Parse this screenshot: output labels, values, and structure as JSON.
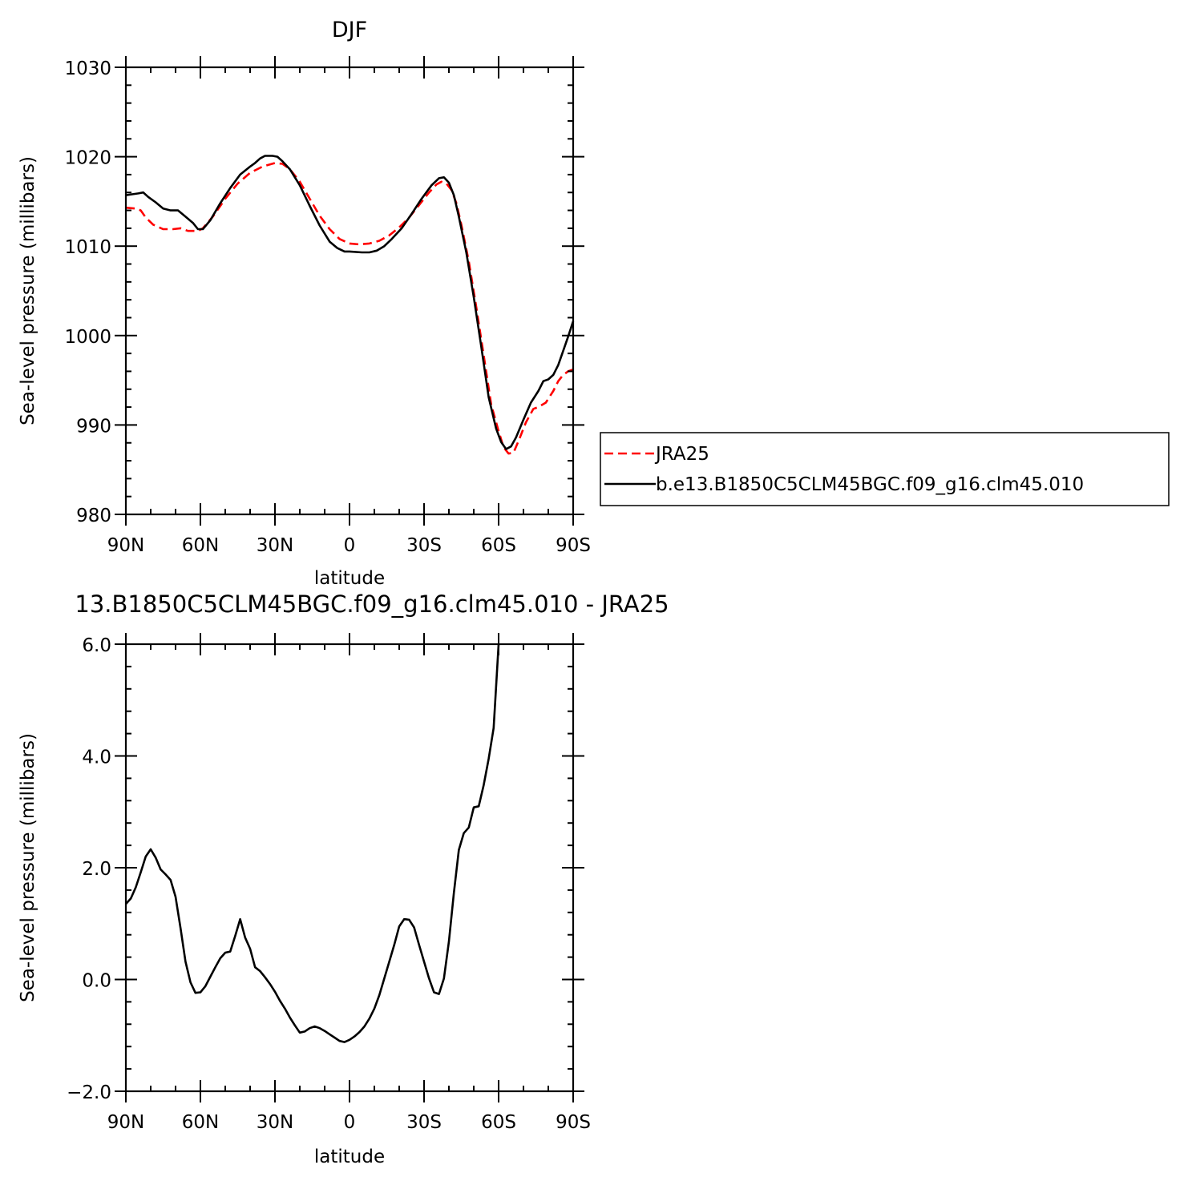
{
  "chart_data": [
    {
      "type": "line",
      "title": "DJF",
      "xlabel": "latitude",
      "ylabel": "Sea-level pressure (millibars)",
      "ylim": [
        980,
        1030
      ],
      "xlim": [
        90,
        -90
      ],
      "x_tick_labels": [
        "90N",
        "60N",
        "30N",
        "0",
        "30S",
        "60S",
        "90S"
      ],
      "y_tick_labels": [
        "980",
        "990",
        "1000",
        "1010",
        "1020",
        "1030"
      ],
      "legend": {
        "placement": "right",
        "entries": [
          "JRA25",
          "b.e13.B1850C5CLM45BGC.f09_g16.clm45.010"
        ]
      },
      "series": [
        {
          "name": "JRA25",
          "color": "#ff0000",
          "dash": "dashed",
          "points": [
            [
              90,
              1014.3
            ],
            [
              86,
              1014.2
            ],
            [
              84,
              1014.0
            ],
            [
              82,
              1013.2
            ],
            [
              79,
              1012.4
            ],
            [
              75,
              1011.9
            ],
            [
              71,
              1011.9
            ],
            [
              68,
              1012.0
            ],
            [
              65,
              1011.7
            ],
            [
              61,
              1011.7
            ],
            [
              59,
              1012.0
            ],
            [
              55,
              1013.3
            ],
            [
              50,
              1015.3
            ],
            [
              45,
              1017.0
            ],
            [
              40,
              1018.2
            ],
            [
              35,
              1018.9
            ],
            [
              30,
              1019.3
            ],
            [
              27,
              1019.2
            ],
            [
              24,
              1018.6
            ],
            [
              20,
              1017.2
            ],
            [
              16,
              1015.3
            ],
            [
              12,
              1013.4
            ],
            [
              8,
              1011.9
            ],
            [
              4,
              1010.8
            ],
            [
              0,
              1010.3
            ],
            [
              -4,
              1010.2
            ],
            [
              -8,
              1010.3
            ],
            [
              -12,
              1010.6
            ],
            [
              -16,
              1011.2
            ],
            [
              -20,
              1012.1
            ],
            [
              -24,
              1013.2
            ],
            [
              -28,
              1014.6
            ],
            [
              -32,
              1016.0
            ],
            [
              -35,
              1016.9
            ],
            [
              -37,
              1017.2
            ],
            [
              -39,
              1017.0
            ],
            [
              -41,
              1016.3
            ],
            [
              -43,
              1014.8
            ],
            [
              -45,
              1012.4
            ],
            [
              -48,
              1008.3
            ],
            [
              -51,
              1003.2
            ],
            [
              -54,
              997.8
            ],
            [
              -57,
              992.3
            ],
            [
              -60,
              989.3
            ],
            [
              -62,
              987.5
            ],
            [
              -64,
              986.8
            ],
            [
              -66,
              986.9
            ],
            [
              -68,
              988.2
            ],
            [
              -71,
              990.3
            ],
            [
              -74,
              991.8
            ],
            [
              -76,
              992.0
            ],
            [
              -79,
              992.5
            ],
            [
              -82,
              993.8
            ],
            [
              -84,
              994.9
            ],
            [
              -86,
              995.6
            ],
            [
              -88,
              996.0
            ],
            [
              -90,
              996.2
            ]
          ]
        },
        {
          "name": "b.e13.B1850C5CLM45BGC.f09_g16.clm45.010",
          "color": "#000000",
          "dash": "solid",
          "points": [
            [
              90,
              1015.7
            ],
            [
              85,
              1015.9
            ],
            [
              83,
              1016.0
            ],
            [
              81,
              1015.5
            ],
            [
              78,
              1014.9
            ],
            [
              75,
              1014.2
            ],
            [
              72,
              1014.0
            ],
            [
              69,
              1014.0
            ],
            [
              66,
              1013.3
            ],
            [
              63,
              1012.6
            ],
            [
              61,
              1011.9
            ],
            [
              59,
              1011.9
            ],
            [
              56,
              1012.9
            ],
            [
              52,
              1014.8
            ],
            [
              48,
              1016.5
            ],
            [
              44,
              1018.0
            ],
            [
              40,
              1018.9
            ],
            [
              38,
              1019.3
            ],
            [
              36,
              1019.8
            ],
            [
              34,
              1020.1
            ],
            [
              31,
              1020.1
            ],
            [
              29,
              1020.0
            ],
            [
              27,
              1019.5
            ],
            [
              24,
              1018.6
            ],
            [
              20,
              1016.8
            ],
            [
              16,
              1014.5
            ],
            [
              12,
              1012.3
            ],
            [
              8,
              1010.5
            ],
            [
              5,
              1009.8
            ],
            [
              2,
              1009.4
            ],
            [
              0,
              1009.4
            ],
            [
              -5,
              1009.3
            ],
            [
              -8,
              1009.3
            ],
            [
              -11,
              1009.5
            ],
            [
              -14,
              1010.0
            ],
            [
              -17,
              1010.8
            ],
            [
              -21,
              1012.0
            ],
            [
              -25,
              1013.6
            ],
            [
              -29,
              1015.3
            ],
            [
              -33,
              1016.8
            ],
            [
              -36,
              1017.6
            ],
            [
              -38,
              1017.7
            ],
            [
              -40,
              1017.1
            ],
            [
              -42,
              1015.7
            ],
            [
              -44,
              1013.3
            ],
            [
              -47,
              1009.3
            ],
            [
              -50,
              1004.3
            ],
            [
              -53,
              998.8
            ],
            [
              -56,
              993.1
            ],
            [
              -59,
              989.6
            ],
            [
              -61,
              988.1
            ],
            [
              -63,
              987.3
            ],
            [
              -65,
              987.6
            ],
            [
              -67,
              988.6
            ],
            [
              -70,
              990.6
            ],
            [
              -73,
              992.5
            ],
            [
              -76,
              993.8
            ],
            [
              -78,
              994.9
            ],
            [
              -80,
              995.1
            ],
            [
              -82,
              995.6
            ],
            [
              -84,
              996.7
            ],
            [
              -86,
              998.3
            ],
            [
              -88,
              999.9
            ],
            [
              -90,
              1001.6
            ]
          ]
        }
      ]
    },
    {
      "type": "line",
      "title": "13.B1850C5CLM45BGC.f09_g16.clm45.010 - JRA25",
      "xlabel": "latitude",
      "ylabel": "Sea-level pressure (millibars)",
      "ylim": [
        -2.0,
        6.0
      ],
      "xlim": [
        90,
        -90
      ],
      "x_tick_labels": [
        "90N",
        "60N",
        "30N",
        "0",
        "30S",
        "60S",
        "90S"
      ],
      "y_tick_labels": [
        "−2.0",
        "0.0",
        "2.0",
        "4.0",
        "6.0"
      ],
      "series": [
        {
          "color": "#000000",
          "dash": "solid",
          "points": [
            [
              90,
              1.35
            ],
            [
              88,
              1.45
            ],
            [
              86,
              1.65
            ],
            [
              84,
              1.92
            ],
            [
              82,
              2.2
            ],
            [
              80,
              2.33
            ],
            [
              78,
              2.18
            ],
            [
              76,
              1.97
            ],
            [
              74,
              1.88
            ],
            [
              72,
              1.78
            ],
            [
              70,
              1.48
            ],
            [
              68,
              0.92
            ],
            [
              66,
              0.32
            ],
            [
              64,
              -0.05
            ],
            [
              62,
              -0.24
            ],
            [
              60,
              -0.23
            ],
            [
              58,
              -0.12
            ],
            [
              56,
              0.05
            ],
            [
              54,
              0.22
            ],
            [
              52,
              0.38
            ],
            [
              50,
              0.48
            ],
            [
              48,
              0.5
            ],
            [
              46,
              0.78
            ],
            [
              44,
              1.08
            ],
            [
              42,
              0.75
            ],
            [
              40,
              0.55
            ],
            [
              38,
              0.22
            ],
            [
              36,
              0.15
            ],
            [
              34,
              0.04
            ],
            [
              32,
              -0.08
            ],
            [
              30,
              -0.22
            ],
            [
              28,
              -0.38
            ],
            [
              26,
              -0.52
            ],
            [
              24,
              -0.68
            ],
            [
              22,
              -0.82
            ],
            [
              20,
              -0.95
            ],
            [
              18,
              -0.93
            ],
            [
              16,
              -0.87
            ],
            [
              14,
              -0.84
            ],
            [
              12,
              -0.87
            ],
            [
              10,
              -0.92
            ],
            [
              8,
              -0.98
            ],
            [
              6,
              -1.04
            ],
            [
              4,
              -1.1
            ],
            [
              2,
              -1.12
            ],
            [
              0,
              -1.08
            ],
            [
              -2,
              -1.02
            ],
            [
              -4,
              -0.94
            ],
            [
              -6,
              -0.84
            ],
            [
              -8,
              -0.7
            ],
            [
              -10,
              -0.52
            ],
            [
              -12,
              -0.28
            ],
            [
              -14,
              0.02
            ],
            [
              -16,
              0.32
            ],
            [
              -18,
              0.62
            ],
            [
              -20,
              0.95
            ],
            [
              -22,
              1.08
            ],
            [
              -24,
              1.07
            ],
            [
              -26,
              0.93
            ],
            [
              -28,
              0.62
            ],
            [
              -30,
              0.32
            ],
            [
              -32,
              0.02
            ],
            [
              -34,
              -0.23
            ],
            [
              -36,
              -0.26
            ],
            [
              -38,
              0.02
            ],
            [
              -40,
              0.68
            ],
            [
              -42,
              1.55
            ],
            [
              -44,
              2.32
            ],
            [
              -46,
              2.62
            ],
            [
              -48,
              2.72
            ],
            [
              -50,
              3.08
            ],
            [
              -52,
              3.1
            ],
            [
              -54,
              3.48
            ],
            [
              -56,
              3.95
            ],
            [
              -58,
              4.5
            ],
            [
              -60,
              6.0
            ]
          ]
        }
      ]
    }
  ]
}
